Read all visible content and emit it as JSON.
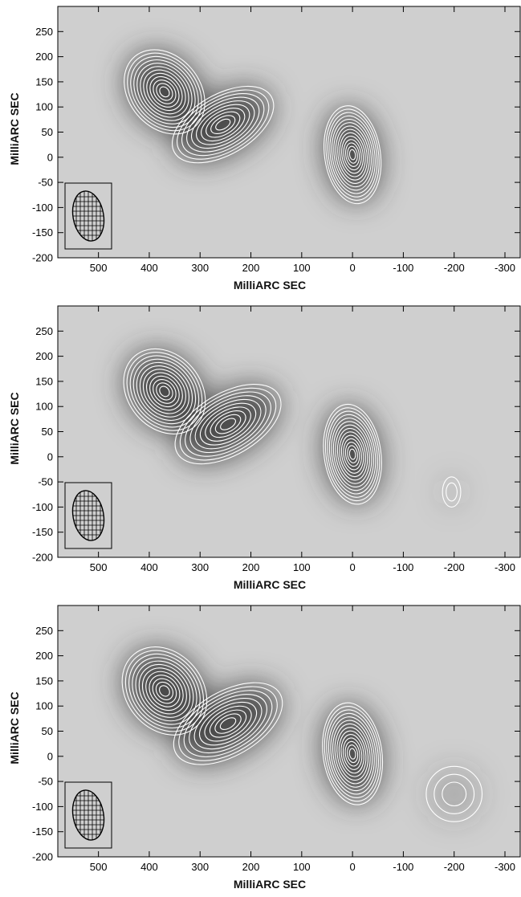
{
  "figure": {
    "panels": [
      {
        "id": "panel-1",
        "xlabel": "MilliARC SEC",
        "ylabel": "MilliARC SEC",
        "xlim": [
          580,
          -330
        ],
        "ylim": [
          -200,
          300
        ],
        "xticks": [
          500,
          400,
          300,
          200,
          100,
          0,
          -100,
          -200,
          -300
        ],
        "yticks": [
          250,
          200,
          150,
          100,
          50,
          0,
          -50,
          -100,
          -150,
          -200
        ],
        "components": [
          {
            "name": "peak-east",
            "x": 370,
            "y": 130,
            "rx": 70,
            "ry": 92,
            "angle": -40,
            "levels": 12
          },
          {
            "name": "peak-middle",
            "x": 255,
            "y": 65,
            "rx": 110,
            "ry": 60,
            "angle": -30,
            "levels": 10
          },
          {
            "name": "core",
            "x": 0,
            "y": 5,
            "rx": 55,
            "ry": 98,
            "angle": -8,
            "levels": 14
          }
        ]
      },
      {
        "id": "panel-2",
        "xlabel": "MilliARC SEC",
        "ylabel": "MilliARC SEC",
        "xlim": [
          580,
          -330
        ],
        "ylim": [
          -200,
          300
        ],
        "xticks": [
          500,
          400,
          300,
          200,
          100,
          0,
          -100,
          -200,
          -300
        ],
        "yticks": [
          250,
          200,
          150,
          100,
          50,
          0,
          -50,
          -100,
          -150,
          -200
        ],
        "components": [
          {
            "name": "peak-east",
            "x": 370,
            "y": 130,
            "rx": 72,
            "ry": 92,
            "angle": -40,
            "levels": 12
          },
          {
            "name": "peak-middle",
            "x": 245,
            "y": 65,
            "rx": 115,
            "ry": 62,
            "angle": -30,
            "levels": 10
          },
          {
            "name": "core",
            "x": 0,
            "y": 5,
            "rx": 56,
            "ry": 100,
            "angle": -8,
            "levels": 14
          },
          {
            "name": "faint-west",
            "x": -195,
            "y": -70,
            "rx": 18,
            "ry": 30,
            "angle": 0,
            "levels": 2
          }
        ]
      },
      {
        "id": "panel-3",
        "xlabel": "MilliARC SEC",
        "ylabel": "MilliARC SEC",
        "xlim": [
          580,
          -330
        ],
        "ylim": [
          -200,
          300
        ],
        "xticks": [
          500,
          400,
          300,
          200,
          100,
          0,
          -100,
          -200,
          -300
        ],
        "yticks": [
          250,
          200,
          150,
          100,
          50,
          0,
          -50,
          -100,
          -150,
          -200
        ],
        "components": [
          {
            "name": "peak-east",
            "x": 370,
            "y": 130,
            "rx": 75,
            "ry": 95,
            "angle": -40,
            "levels": 12
          },
          {
            "name": "peak-middle",
            "x": 245,
            "y": 65,
            "rx": 118,
            "ry": 64,
            "angle": -30,
            "levels": 10
          },
          {
            "name": "core",
            "x": 0,
            "y": 5,
            "rx": 58,
            "ry": 102,
            "angle": -8,
            "levels": 14
          },
          {
            "name": "faint-west",
            "x": -200,
            "y": -75,
            "rx": 55,
            "ry": 55,
            "angle": 0,
            "levels": 3
          }
        ]
      }
    ],
    "beam": {
      "major": 100,
      "minor": 60,
      "angle": -10
    },
    "colors": {
      "background": "#cfcfcf",
      "emission": "#3a3a3a",
      "contour": "#ffffff",
      "frame": "#000000"
    }
  }
}
